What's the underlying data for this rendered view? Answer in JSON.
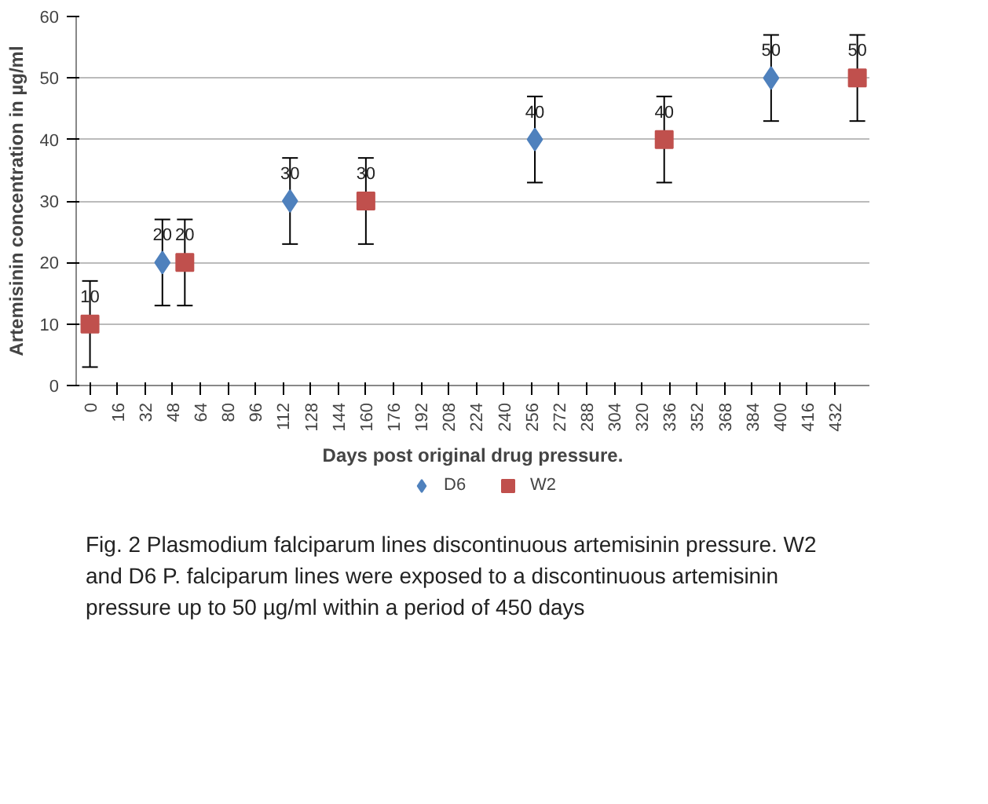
{
  "chart_data": {
    "type": "scatter",
    "xlabel": "Days post original drug pressure.",
    "ylabel": "Artemisinin concentration in µg/ml",
    "xlim": [
      -8,
      452
    ],
    "xticks": [
      0,
      16,
      32,
      48,
      64,
      80,
      96,
      112,
      128,
      144,
      160,
      176,
      192,
      208,
      224,
      240,
      256,
      272,
      288,
      304,
      320,
      336,
      352,
      368,
      384,
      400,
      416,
      432
    ],
    "ylim": [
      0,
      60
    ],
    "yticks": [
      0,
      10,
      20,
      30,
      40,
      50,
      60
    ],
    "grid": "y",
    "legend": "bottom",
    "data_labels": true,
    "series": [
      {
        "name": "D6",
        "color": "#4f81bd",
        "marker": "diamond",
        "x": [
          42,
          116,
          258,
          395
        ],
        "values": [
          20,
          30,
          40,
          50
        ],
        "errors": [
          7,
          7,
          7,
          7
        ]
      },
      {
        "name": "W2",
        "color": "#c0504d",
        "marker": "square",
        "x": [
          0,
          55,
          160,
          333,
          445
        ],
        "values": [
          10,
          20,
          30,
          40,
          50
        ],
        "errors": [
          7,
          7,
          7,
          7,
          7
        ]
      }
    ],
    "annotations": [
      "Fig. 2 Plasmodium falciparum lines discontinuous artemisinin pressure. W2 and D6 P. falciparum lines were exposed to a discontinuous artemisinin pressure up to 50 µg/ml within a period of 450 days"
    ]
  }
}
